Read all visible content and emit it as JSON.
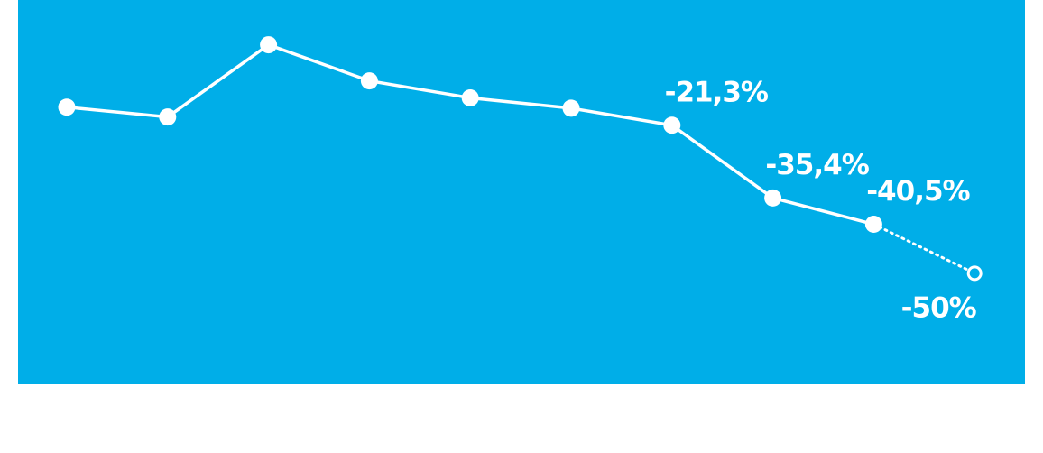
{
  "chart_data": {
    "type": "line",
    "categories": [
      null,
      null,
      null,
      null,
      null,
      null,
      null,
      null,
      null,
      null
    ],
    "values": [
      -17.8,
      -19.7,
      -5.7,
      -12.7,
      -16.0,
      -18.0,
      -21.3,
      -35.4,
      -40.5,
      -50
    ],
    "value_labels": [
      null,
      null,
      null,
      null,
      null,
      null,
      "-21,3%",
      "-35,4%",
      "-40,5%",
      "-50%"
    ],
    "ylim": [
      -60,
      0
    ],
    "forecast_from": 8,
    "color": "#ffffff",
    "background": "#00aee8"
  }
}
